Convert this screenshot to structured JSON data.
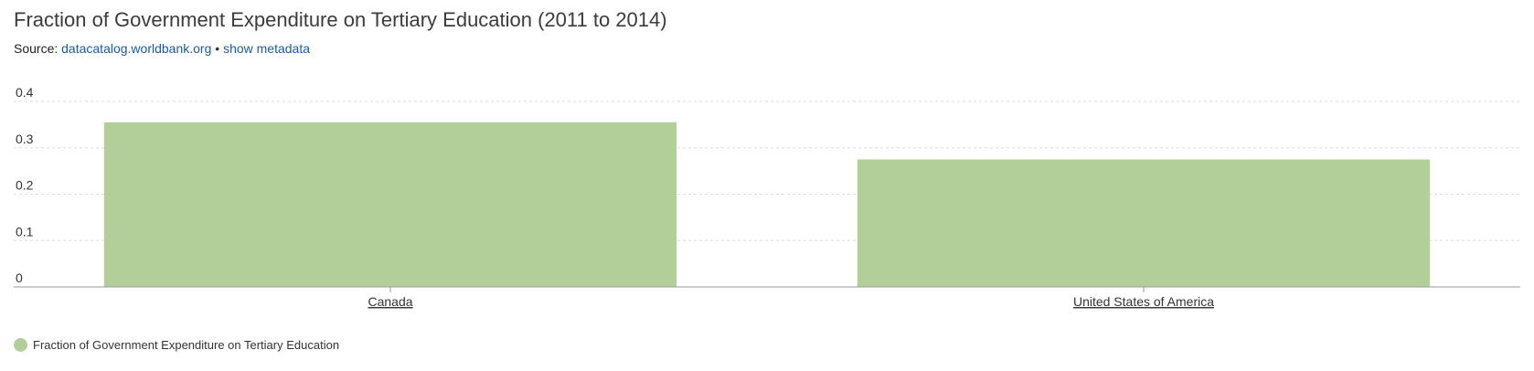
{
  "header": {
    "title": "Fraction of Government Expenditure on Tertiary Education (2011 to 2014)",
    "source_prefix": "Source:",
    "source_link": "datacatalog.worldbank.org",
    "separator": "•",
    "metadata_link": "show metadata"
  },
  "colors": {
    "bar": "#b3cf99",
    "link": "#1a5ba6",
    "grid": "#dddddd",
    "axis": "#999999"
  },
  "chart_data": {
    "type": "bar",
    "categories": [
      "Canada",
      "United States of America"
    ],
    "series": [
      {
        "name": "Fraction of Government Expenditure on Tertiary Education",
        "values": [
          0.355,
          0.275
        ]
      }
    ],
    "yticks": [
      "0",
      "0.1",
      "0.2",
      "0.3",
      "0.4"
    ],
    "ylim": [
      0,
      0.4
    ],
    "grid": true,
    "legend_position": "bottom-left"
  }
}
